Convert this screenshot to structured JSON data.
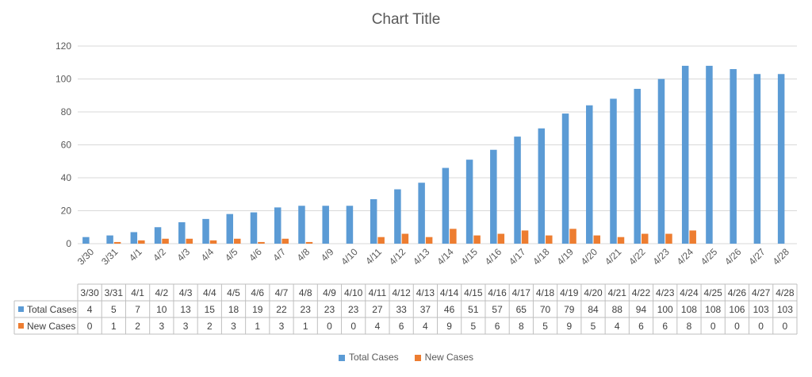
{
  "chart_data": {
    "type": "bar",
    "title": "Chart Title",
    "categories": [
      "3/30",
      "3/31",
      "4/1",
      "4/2",
      "4/3",
      "4/4",
      "4/5",
      "4/6",
      "4/7",
      "4/8",
      "4/9",
      "4/10",
      "4/11",
      "4/12",
      "4/13",
      "4/14",
      "4/15",
      "4/16",
      "4/17",
      "4/18",
      "4/19",
      "4/20",
      "4/21",
      "4/22",
      "4/23",
      "4/24",
      "4/25",
      "4/26",
      "4/27",
      "4/28"
    ],
    "series": [
      {
        "name": "Total Cases",
        "color": "#5B9BD5",
        "values": [
          4,
          5,
          7,
          10,
          13,
          15,
          18,
          19,
          22,
          23,
          23,
          23,
          27,
          33,
          37,
          46,
          51,
          57,
          65,
          70,
          79,
          84,
          88,
          94,
          100,
          108,
          108,
          106,
          103,
          103
        ]
      },
      {
        "name": "New Cases",
        "color": "#ED7D31",
        "values": [
          0,
          1,
          2,
          3,
          3,
          2,
          3,
          1,
          3,
          1,
          0,
          0,
          4,
          6,
          4,
          9,
          5,
          6,
          8,
          5,
          9,
          5,
          4,
          6,
          6,
          8,
          0,
          0,
          0,
          0
        ]
      }
    ],
    "ylim": [
      0,
      120
    ],
    "yticks": [
      0,
      20,
      40,
      60,
      80,
      100,
      120
    ],
    "grid": true,
    "data_table": true,
    "legend_position": "bottom"
  }
}
